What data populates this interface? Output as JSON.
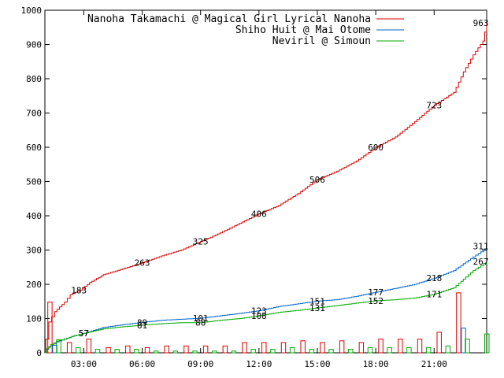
{
  "chart_data": {
    "type": "line",
    "title": "",
    "xlabel": "",
    "ylabel": "",
    "xlim": [
      1.0,
      23.7
    ],
    "ylim": [
      0,
      1000
    ],
    "y_ticks": [
      0,
      100,
      200,
      300,
      400,
      500,
      600,
      700,
      800,
      900,
      1000
    ],
    "x_ticks": [
      {
        "value": 3,
        "label": "03:00"
      },
      {
        "value": 6,
        "label": "06:00"
      },
      {
        "value": 9,
        "label": "09:00"
      },
      {
        "value": 12,
        "label": "12:00"
      },
      {
        "value": 15,
        "label": "15:00"
      },
      {
        "value": 18,
        "label": "18:00"
      },
      {
        "value": 21,
        "label": "21:00"
      }
    ],
    "grid": false,
    "legend_position": "top-right",
    "colors": {
      "red": "#dd0000",
      "blue": "#0066cc",
      "green": "#00aa00"
    },
    "series": [
      {
        "name": "Nanoha Takamachi @ Magical Girl Lyrical Nanoha",
        "color": "#dd0000",
        "points": [
          [
            1.0,
            0
          ],
          [
            1.05,
            40
          ],
          [
            1.2,
            90
          ],
          [
            1.5,
            120
          ],
          [
            2.0,
            148
          ],
          [
            2.3,
            170
          ],
          [
            2.8,
            183
          ],
          [
            3.3,
            205
          ],
          [
            4.0,
            228
          ],
          [
            5.0,
            245
          ],
          [
            6.0,
            263
          ],
          [
            7.0,
            283
          ],
          [
            8.0,
            300
          ],
          [
            9.0,
            325
          ],
          [
            10.0,
            350
          ],
          [
            11.0,
            378
          ],
          [
            12.0,
            406
          ],
          [
            13.0,
            430
          ],
          [
            14.0,
            465
          ],
          [
            15.0,
            506
          ],
          [
            16.0,
            530
          ],
          [
            17.0,
            560
          ],
          [
            18.0,
            600
          ],
          [
            19.0,
            630
          ],
          [
            20.0,
            675
          ],
          [
            21.0,
            723
          ],
          [
            22.0,
            760
          ],
          [
            22.5,
            820
          ],
          [
            23.0,
            870
          ],
          [
            23.5,
            910
          ],
          [
            23.7,
            963
          ]
        ],
        "labels": [
          [
            2.75,
            183
          ],
          [
            6.0,
            263
          ],
          [
            9.0,
            325
          ],
          [
            12.0,
            406
          ],
          [
            15.0,
            506
          ],
          [
            18.0,
            600
          ],
          [
            21.0,
            723
          ],
          [
            23.4,
            963
          ]
        ],
        "bars": [
          [
            1.15,
            148
          ],
          [
            2.15,
            30
          ],
          [
            3.15,
            40
          ],
          [
            4.15,
            15
          ],
          [
            5.15,
            20
          ],
          [
            6.15,
            15
          ],
          [
            7.15,
            20
          ],
          [
            8.15,
            20
          ],
          [
            9.15,
            20
          ],
          [
            10.15,
            20
          ],
          [
            11.15,
            30
          ],
          [
            12.15,
            30
          ],
          [
            13.15,
            30
          ],
          [
            14.15,
            35
          ],
          [
            15.15,
            30
          ],
          [
            16.15,
            35
          ],
          [
            17.15,
            30
          ],
          [
            18.15,
            40
          ],
          [
            19.15,
            40
          ],
          [
            20.15,
            40
          ],
          [
            21.15,
            60
          ],
          [
            22.15,
            175
          ],
          [
            23.15,
            0
          ]
        ]
      },
      {
        "name": "Shiho Huit @ Mai Otome",
        "color": "#0066cc",
        "points": [
          [
            1.0,
            0
          ],
          [
            1.1,
            10
          ],
          [
            1.3,
            22
          ],
          [
            1.6,
            32
          ],
          [
            2.0,
            40
          ],
          [
            2.5,
            50
          ],
          [
            3.0,
            57
          ],
          [
            4.0,
            74
          ],
          [
            5.0,
            82
          ],
          [
            6.0,
            89
          ],
          [
            7.0,
            95
          ],
          [
            8.0,
            98
          ],
          [
            9.0,
            101
          ],
          [
            10.0,
            108
          ],
          [
            11.0,
            115
          ],
          [
            12.0,
            123
          ],
          [
            13.0,
            135
          ],
          [
            14.0,
            143
          ],
          [
            15.0,
            151
          ],
          [
            16.0,
            155
          ],
          [
            17.0,
            165
          ],
          [
            18.0,
            177
          ],
          [
            19.0,
            188
          ],
          [
            20.0,
            200
          ],
          [
            21.0,
            218
          ],
          [
            22.0,
            240
          ],
          [
            22.5,
            260
          ],
          [
            23.0,
            280
          ],
          [
            23.4,
            295
          ],
          [
            23.7,
            311
          ]
        ],
        "labels": [
          [
            3.0,
            57
          ],
          [
            6.0,
            89
          ],
          [
            9.0,
            101
          ],
          [
            12.0,
            123
          ],
          [
            15.0,
            151
          ],
          [
            18.0,
            177
          ],
          [
            21.0,
            218
          ],
          [
            23.4,
            311
          ]
        ],
        "bars": [
          [
            1.4,
            22
          ],
          [
            2.4,
            0
          ],
          [
            3.4,
            0
          ],
          [
            4.4,
            0
          ],
          [
            5.4,
            0
          ],
          [
            6.4,
            0
          ],
          [
            7.4,
            0
          ],
          [
            8.4,
            0
          ],
          [
            9.4,
            0
          ],
          [
            10.4,
            0
          ],
          [
            11.4,
            0
          ],
          [
            12.4,
            0
          ],
          [
            13.4,
            0
          ],
          [
            14.4,
            0
          ],
          [
            15.4,
            0
          ],
          [
            16.4,
            0
          ],
          [
            17.4,
            0
          ],
          [
            18.4,
            0
          ],
          [
            19.4,
            0
          ],
          [
            20.4,
            0
          ],
          [
            21.4,
            0
          ],
          [
            22.4,
            72
          ],
          [
            23.4,
            0
          ]
        ]
      },
      {
        "name": "Neviril @ Simoun",
        "color": "#00aa00",
        "points": [
          [
            1.0,
            0
          ],
          [
            1.1,
            12
          ],
          [
            1.3,
            24
          ],
          [
            1.6,
            34
          ],
          [
            2.0,
            40
          ],
          [
            2.5,
            50
          ],
          [
            3.0,
            57
          ],
          [
            4.0,
            70
          ],
          [
            5.0,
            76
          ],
          [
            6.0,
            81
          ],
          [
            7.0,
            85
          ],
          [
            8.0,
            88
          ],
          [
            9.0,
            88
          ],
          [
            10.0,
            95
          ],
          [
            11.0,
            100
          ],
          [
            12.0,
            108
          ],
          [
            13.0,
            118
          ],
          [
            14.0,
            124
          ],
          [
            15.0,
            131
          ],
          [
            16.0,
            138
          ],
          [
            17.0,
            145
          ],
          [
            18.0,
            152
          ],
          [
            19.0,
            155
          ],
          [
            20.0,
            160
          ],
          [
            21.0,
            171
          ],
          [
            22.0,
            190
          ],
          [
            22.5,
            215
          ],
          [
            23.0,
            240
          ],
          [
            23.4,
            255
          ],
          [
            23.7,
            267
          ]
        ],
        "labels": [
          [
            3.0,
            57
          ],
          [
            6.0,
            81
          ],
          [
            9.0,
            88
          ],
          [
            12.0,
            108
          ],
          [
            15.0,
            131
          ],
          [
            18.0,
            152
          ],
          [
            21.0,
            171
          ],
          [
            23.4,
            267
          ]
        ],
        "bars": [
          [
            1.6,
            38
          ],
          [
            2.6,
            15
          ],
          [
            3.6,
            10
          ],
          [
            4.6,
            10
          ],
          [
            5.6,
            10
          ],
          [
            6.6,
            5
          ],
          [
            7.6,
            5
          ],
          [
            8.6,
            5
          ],
          [
            9.6,
            5
          ],
          [
            10.6,
            5
          ],
          [
            11.6,
            10
          ],
          [
            12.6,
            10
          ],
          [
            13.6,
            15
          ],
          [
            14.6,
            10
          ],
          [
            15.6,
            10
          ],
          [
            16.6,
            10
          ],
          [
            17.6,
            15
          ],
          [
            18.6,
            15
          ],
          [
            19.6,
            15
          ],
          [
            20.6,
            15
          ],
          [
            21.6,
            20
          ],
          [
            22.6,
            40
          ],
          [
            23.6,
            55
          ]
        ]
      }
    ],
    "point_labels_text": [
      "183",
      "263",
      "325",
      "406",
      "506",
      "600",
      "723",
      "963",
      "57",
      "89",
      "101",
      "123",
      "151",
      "177",
      "218",
      "311",
      "57",
      "81",
      "88",
      "108",
      "131",
      "152",
      "171",
      "267"
    ]
  }
}
